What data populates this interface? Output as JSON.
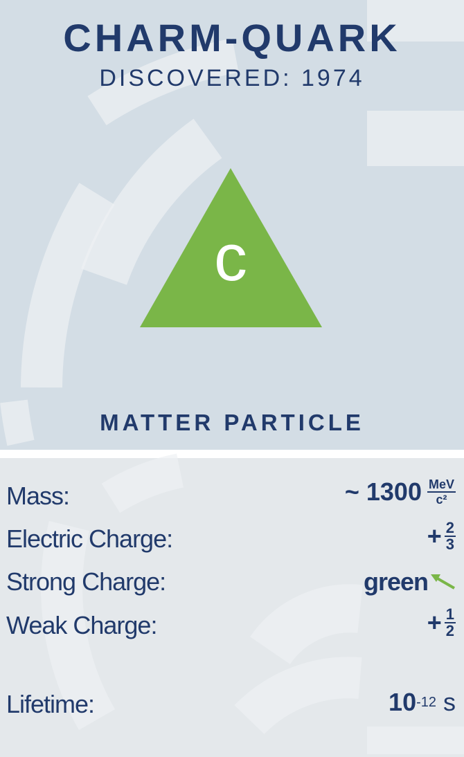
{
  "header": {
    "title": "CHARM-QUARK",
    "subtitle": "DISCOVERED: 1974"
  },
  "symbol": "c",
  "category": "MATTER PARTICLE",
  "properties": [
    {
      "label": "Mass:",
      "value": "~ 1300",
      "unit_numerator": "MeV",
      "unit_denominator": "c²"
    },
    {
      "label": "Electric Charge:",
      "sign": "+",
      "numerator": "2",
      "denominator": "3"
    },
    {
      "label": "Strong Charge:",
      "value": "green"
    },
    {
      "label": "Weak Charge:",
      "sign": "+",
      "numerator": "1",
      "denominator": "2"
    },
    {
      "label": "Lifetime:",
      "base": "10",
      "exponent": "-12",
      "unit": "s"
    }
  ]
}
